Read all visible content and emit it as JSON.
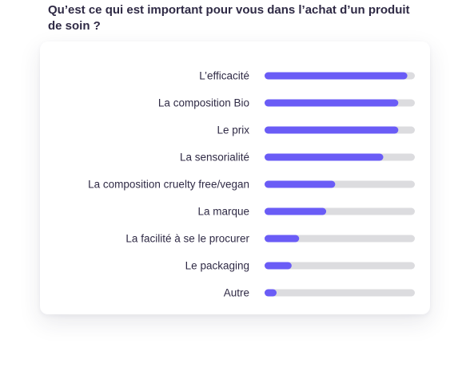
{
  "title": "Qu’est ce qui est important pour vous dans l’achat d’un produit de soin ?",
  "colors": {
    "bar_fill": "#6a5cf6",
    "track": "#dcdcdf",
    "text": "#2f2a45"
  },
  "chart_data": {
    "type": "bar",
    "orientation": "horizontal",
    "title": "Qu’est ce qui est important pour vous dans l’achat d’un produit de soin ?",
    "categories": [
      "L’efficacité",
      "La composition Bio",
      "Le prix",
      "La sensorialité",
      "La composition cruelty free/vegan",
      "La marque",
      "La facilité à se le procurer",
      "Le packaging",
      "Autre"
    ],
    "values": [
      95,
      89,
      89,
      79,
      47,
      41,
      23,
      18,
      8
    ],
    "xlim": [
      0,
      100
    ],
    "grid": false,
    "legend": "none"
  }
}
